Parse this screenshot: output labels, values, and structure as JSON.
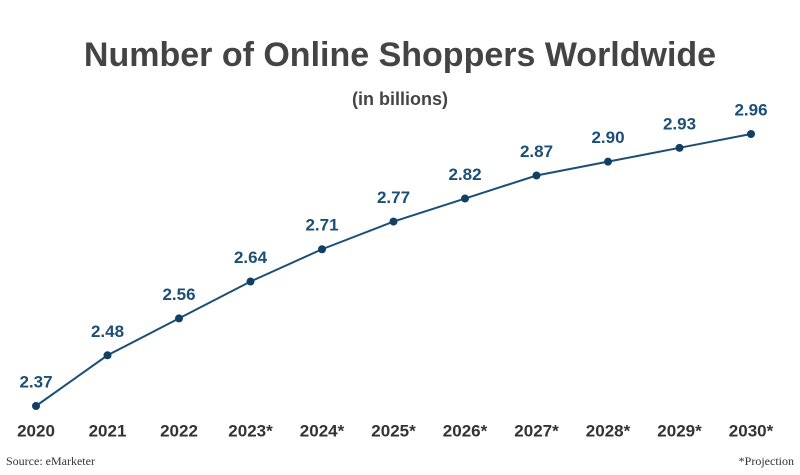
{
  "chart_data": {
    "type": "line",
    "title": "Number of Online Shoppers Worldwide",
    "subtitle": "(in billions)",
    "categories": [
      "2020",
      "2021",
      "2022",
      "2023*",
      "2024*",
      "2025*",
      "2026*",
      "2027*",
      "2028*",
      "2029*",
      "2030*"
    ],
    "series": [
      {
        "name": "Online shoppers",
        "color": "#1c4f75",
        "values": [
          2.37,
          2.48,
          2.56,
          2.64,
          2.71,
          2.77,
          2.82,
          2.87,
          2.9,
          2.93,
          2.96
        ],
        "value_labels": [
          "2.37",
          "2.48",
          "2.56",
          "2.64",
          "2.71",
          "2.77",
          "2.82",
          "2.87",
          "2.90",
          "2.93",
          "2.96"
        ]
      }
    ],
    "source": "Source: eMarketer",
    "note": "*Projection"
  }
}
